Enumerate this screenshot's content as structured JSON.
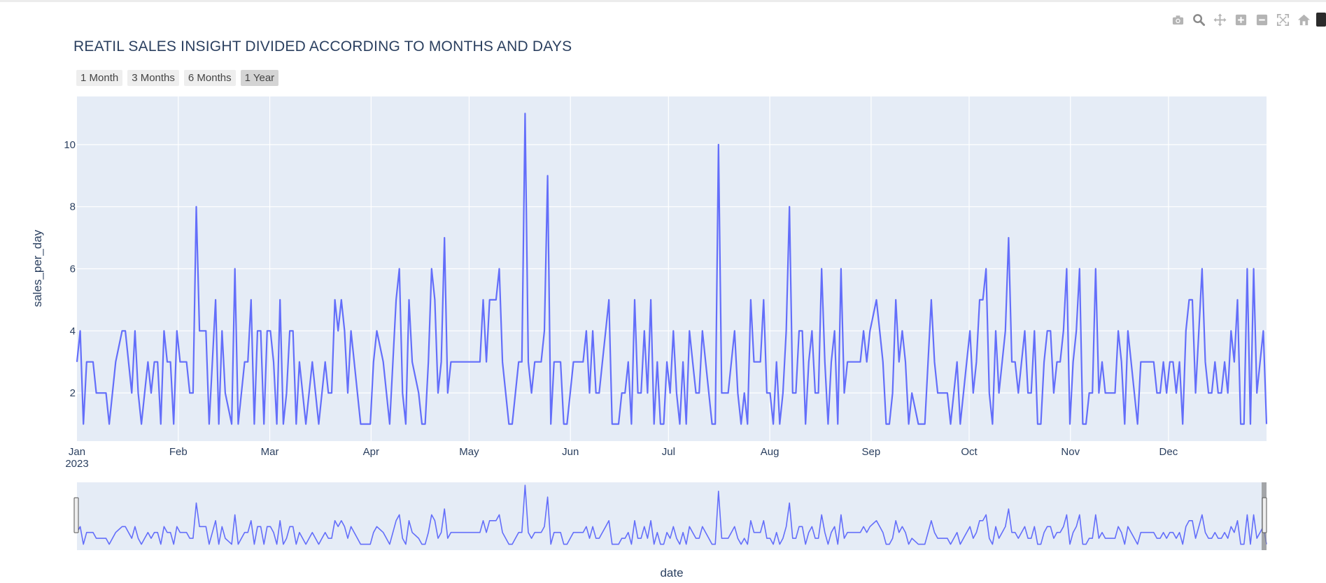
{
  "modebar": {
    "items": [
      {
        "icon": "camera-icon",
        "tooltip": "Download plot as a png"
      },
      {
        "icon": "zoom-icon",
        "tooltip": "Zoom"
      },
      {
        "icon": "pan-icon",
        "tooltip": "Pan"
      },
      {
        "icon": "zoom-in-icon",
        "tooltip": "Zoom in"
      },
      {
        "icon": "zoom-out-icon",
        "tooltip": "Zoom out"
      },
      {
        "icon": "autoscale-icon",
        "tooltip": "Autoscale"
      },
      {
        "icon": "home-icon",
        "tooltip": "Reset axes"
      },
      {
        "icon": "plotly-logo-icon",
        "tooltip": "Produced with Plotly"
      }
    ],
    "icon_color": "#b4b4b4",
    "active_color": "#8a8a8a"
  },
  "range_selector": {
    "buttons": [
      "1 Month",
      "3 Months",
      "6 Months",
      "1 Year"
    ],
    "active_index": 3
  },
  "colors": {
    "line": "#636efa",
    "plot_bg": "#e5ecf6",
    "grid": "#ffffff",
    "text": "#2a3f5f"
  },
  "chart_data": {
    "type": "line",
    "title": "REATIL SALES INSIGHT DIVIDED ACCORDING TO MONTHS AND DAYS",
    "xlabel": "date",
    "ylabel": "sales_per_day",
    "x_start": "2023-01-01",
    "x_end": "2023-12-31",
    "x_ticks": [
      "Jan",
      "Feb",
      "Mar",
      "Apr",
      "May",
      "Jun",
      "Jul",
      "Aug",
      "Sep",
      "Oct",
      "Nov",
      "Dec"
    ],
    "x_year_label": "2023",
    "y_ticks": [
      2,
      4,
      6,
      8,
      10
    ],
    "ylim": [
      0.45,
      11.55
    ],
    "rangeslider": true,
    "series": [
      {
        "name": "sales_per_day",
        "color": "#636efa",
        "values": [
          3,
          4,
          1,
          3,
          3,
          3,
          2,
          2,
          2,
          2,
          1,
          2,
          3,
          3.5,
          4,
          4,
          3,
          2,
          4,
          2,
          1,
          2,
          3,
          2,
          3,
          3,
          1,
          4,
          3,
          3,
          1,
          4,
          3,
          3,
          3,
          2,
          2,
          8,
          4,
          4,
          4,
          1,
          3,
          5,
          1,
          4,
          2,
          1.5,
          1,
          6,
          1,
          2,
          3,
          3,
          5,
          1,
          4,
          4,
          1,
          4,
          4,
          3,
          1,
          5,
          1,
          2,
          4,
          4,
          1,
          3,
          2,
          1,
          2,
          3,
          2,
          1,
          2,
          3,
          2,
          2,
          5,
          4,
          5,
          4,
          2,
          4,
          3,
          2,
          1,
          1,
          1,
          1,
          3,
          4,
          3.5,
          3,
          2,
          1,
          3,
          5,
          6,
          2,
          1,
          5,
          3,
          2.5,
          2,
          1,
          1,
          3,
          6,
          5,
          2,
          3,
          7,
          2,
          3,
          3,
          3,
          3,
          3,
          3,
          3,
          3,
          3,
          3,
          5,
          3,
          5,
          5,
          5,
          6,
          3,
          2,
          1,
          1,
          2,
          3,
          3,
          11,
          3,
          2,
          3,
          3,
          3,
          4,
          9,
          1,
          3,
          3,
          3,
          1,
          1,
          2,
          3,
          3,
          3,
          3,
          4,
          2,
          4,
          2,
          2,
          3,
          4,
          5,
          1,
          1,
          1,
          2,
          2,
          3,
          1,
          5,
          2,
          2,
          4,
          2,
          5,
          1,
          3,
          1,
          1,
          3,
          2,
          4,
          2,
          1,
          3,
          1,
          4,
          3,
          2,
          2,
          4,
          3,
          2,
          1,
          1,
          10,
          2,
          2,
          2,
          3,
          4,
          2,
          1,
          2,
          1,
          5,
          3,
          3,
          3,
          5,
          2,
          2,
          1,
          3,
          1,
          2,
          4,
          8,
          2,
          2,
          4,
          4,
          1,
          3,
          4,
          2,
          2,
          6,
          3,
          1,
          3,
          4,
          1,
          6,
          2,
          3,
          3,
          3,
          3,
          3,
          4,
          3,
          4,
          4.5,
          5,
          4,
          3,
          1,
          1,
          2,
          5,
          3,
          4,
          3,
          1,
          2,
          1.5,
          1,
          1,
          1,
          3,
          5,
          3,
          2,
          2,
          2,
          2,
          1,
          2,
          3,
          1,
          2,
          3,
          4,
          2,
          3,
          5,
          5,
          6,
          2,
          1,
          4,
          2,
          3,
          4,
          7,
          3,
          3,
          2,
          3,
          4,
          2,
          2,
          4,
          1,
          1,
          3,
          4,
          4,
          2,
          3,
          3,
          4,
          6,
          1,
          3,
          4,
          6,
          1,
          1,
          2,
          2,
          6,
          2,
          3,
          2,
          2,
          2,
          2,
          4,
          3,
          1,
          4,
          3,
          2,
          1,
          3,
          3,
          3,
          3,
          3,
          2,
          2,
          3,
          2,
          3,
          3,
          2,
          3,
          1,
          4,
          5,
          5,
          2,
          4,
          6,
          3,
          2,
          2,
          3,
          2,
          2,
          3,
          2,
          4,
          3,
          5,
          1,
          1,
          6,
          1,
          6,
          2,
          3,
          4,
          1
        ]
      }
    ]
  }
}
